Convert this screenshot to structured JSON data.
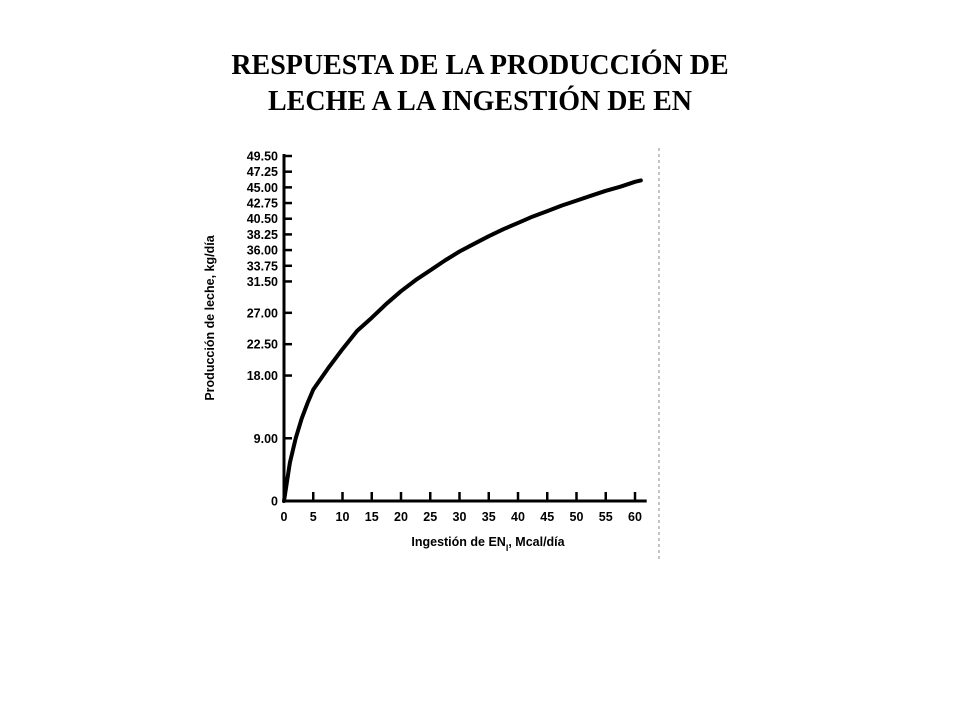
{
  "slide": {
    "title_line1": "RESPUESTA DE LA PRODUCCIÓN DE",
    "title_line2": "LECHE A LA INGESTIÓN  DE EN"
  },
  "chart_data": {
    "type": "line",
    "xlabel": "Ingestión de EN",
    "xlabel_subscript": "l",
    "xlabel_suffix": ", Mcal/día",
    "ylabel": "Producción de leche, kg/día",
    "xlim": [
      0,
      62
    ],
    "ylim": [
      0,
      49.5
    ],
    "x_ticks": [
      0,
      5,
      10,
      15,
      20,
      25,
      30,
      35,
      40,
      45,
      50,
      55,
      60
    ],
    "y_ticks": [
      0,
      9.0,
      18.0,
      22.5,
      27.0,
      31.5,
      33.75,
      36.0,
      38.25,
      40.5,
      42.75,
      45.0,
      47.25,
      49.5
    ],
    "y_tick_labels": [
      "0",
      "9.00",
      "18.00",
      "22.50",
      "27.00",
      "31.50",
      "33.75",
      "36.00",
      "38.25",
      "40.50",
      "42.75",
      "45.00",
      "47.25",
      "49.50"
    ],
    "series": [
      {
        "color": "#000000",
        "points": [
          [
            0,
            0
          ],
          [
            1,
            5.5
          ],
          [
            2,
            9.0
          ],
          [
            3,
            11.8
          ],
          [
            4,
            14.0
          ],
          [
            5,
            16.0
          ],
          [
            7.5,
            19.0
          ],
          [
            10,
            21.8
          ],
          [
            12.5,
            24.4
          ],
          [
            15,
            26.3
          ],
          [
            17.5,
            28.3
          ],
          [
            20,
            30.1
          ],
          [
            22.5,
            31.7
          ],
          [
            25,
            33.1
          ],
          [
            27.5,
            34.5
          ],
          [
            30,
            35.8
          ],
          [
            32.5,
            36.9
          ],
          [
            35,
            38.0
          ],
          [
            37.5,
            39.0
          ],
          [
            40,
            39.9
          ],
          [
            42.5,
            40.8
          ],
          [
            45,
            41.6
          ],
          [
            47.5,
            42.4
          ],
          [
            50,
            43.1
          ],
          [
            52.5,
            43.8
          ],
          [
            55,
            44.5
          ],
          [
            57.5,
            45.1
          ],
          [
            60,
            45.8
          ],
          [
            61,
            46.0
          ]
        ]
      }
    ]
  }
}
